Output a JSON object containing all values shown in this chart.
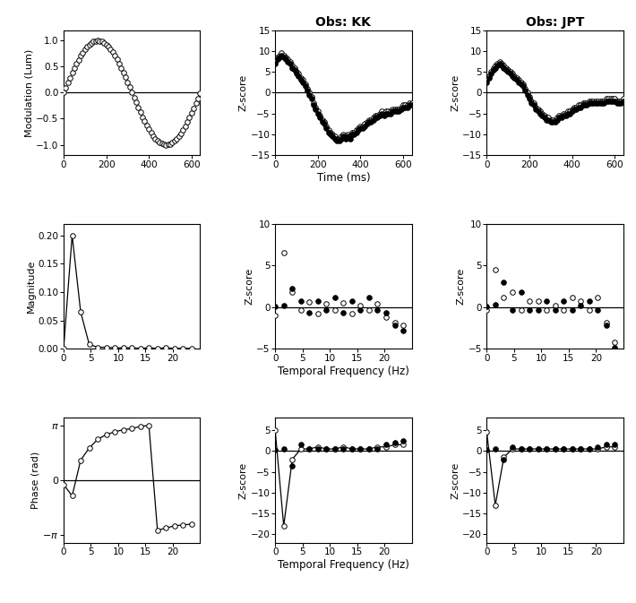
{
  "title_KK": "Obs: KK",
  "title_JPT": "Obs: JPT",
  "row1_ylabel": "Modulation (Lum)",
  "row2_ylabel": "Magnitude",
  "row3_ylabel": "Phase (rad)",
  "zscore_ylabel": "Z-score",
  "row1_xlabel": "Time (ms)",
  "row23_xlabel": "Temporal Frequency (Hz)",
  "background_color": "#ffffff",
  "marker_size": 4.0,
  "line_width": 0.9,
  "mew": 0.7,
  "period_ms": 641.0,
  "t_vals": [
    0,
    10,
    20,
    30,
    40,
    50,
    60,
    70,
    80,
    90,
    100,
    110,
    120,
    130,
    140,
    150,
    160,
    170,
    180,
    190,
    200,
    210,
    220,
    230,
    240,
    250,
    260,
    270,
    280,
    290,
    300,
    310,
    320,
    330,
    340,
    350,
    360,
    370,
    380,
    390,
    400,
    410,
    420,
    430,
    440,
    450,
    460,
    470,
    480,
    490,
    500,
    510,
    520,
    530,
    540,
    550,
    560,
    570,
    580,
    590,
    600,
    610,
    620,
    630,
    640
  ],
  "freqs": [
    0.0,
    1.5625,
    3.125,
    4.6875,
    6.25,
    7.8125,
    9.375,
    10.9375,
    12.5,
    14.0625,
    15.625,
    17.1875,
    18.75,
    20.3125,
    21.875,
    23.4375
  ],
  "mag_vals": [
    0.001,
    0.2,
    0.065,
    0.008,
    0.003,
    0.003,
    0.002,
    0.002,
    0.002,
    0.001,
    0.002,
    0.001,
    0.002,
    0.001,
    0.001,
    0.001
  ],
  "phase_vals": [
    -0.25,
    -0.9,
    1.15,
    1.85,
    2.35,
    2.62,
    2.78,
    2.9,
    2.96,
    3.1,
    3.14,
    -2.88,
    -2.75,
    -2.62,
    -2.57,
    -2.52
  ],
  "kk_r1_open": [
    7.5,
    8.5,
    9.0,
    9.5,
    9.0,
    8.5,
    8.0,
    7.5,
    6.5,
    6.0,
    5.0,
    4.5,
    3.5,
    3.0,
    2.0,
    1.0,
    0.0,
    -1.0,
    -2.5,
    -3.5,
    -4.5,
    -5.5,
    -6.5,
    -7.0,
    -8.0,
    -9.0,
    -9.5,
    -10.0,
    -10.5,
    -11.0,
    -11.0,
    -10.5,
    -10.0,
    -10.5,
    -10.0,
    -10.5,
    -9.5,
    -9.5,
    -9.0,
    -8.5,
    -8.0,
    -8.0,
    -7.5,
    -7.0,
    -6.5,
    -6.5,
    -6.0,
    -5.5,
    -5.5,
    -5.0,
    -4.5,
    -5.0,
    -4.5,
    -4.5,
    -4.5,
    -4.0,
    -4.0,
    -4.0,
    -4.0,
    -3.5,
    -3.0,
    -3.0,
    -3.0,
    -2.5,
    -2.5
  ],
  "kk_r1_closed": [
    7.0,
    8.0,
    8.5,
    9.0,
    8.5,
    8.0,
    7.5,
    7.0,
    6.0,
    5.5,
    4.5,
    4.0,
    3.0,
    2.5,
    1.5,
    0.5,
    -0.5,
    -1.5,
    -3.0,
    -4.0,
    -5.0,
    -6.0,
    -7.0,
    -7.5,
    -8.5,
    -9.5,
    -10.0,
    -10.5,
    -11.0,
    -11.5,
    -11.5,
    -11.0,
    -10.5,
    -11.0,
    -10.5,
    -11.0,
    -10.0,
    -10.0,
    -9.5,
    -9.0,
    -8.5,
    -8.5,
    -8.0,
    -7.5,
    -7.0,
    -7.0,
    -6.5,
    -6.0,
    -6.0,
    -5.5,
    -5.0,
    -5.5,
    -5.0,
    -5.0,
    -5.0,
    -4.5,
    -4.5,
    -4.5,
    -4.5,
    -4.0,
    -3.5,
    -3.5,
    -3.5,
    -3.0,
    -3.0
  ],
  "jpt_r1_open": [
    3.0,
    4.0,
    5.0,
    6.0,
    6.5,
    7.0,
    7.5,
    7.0,
    6.5,
    6.0,
    5.5,
    5.0,
    4.5,
    4.0,
    3.5,
    3.0,
    2.5,
    2.0,
    1.0,
    0.0,
    -1.0,
    -2.0,
    -2.5,
    -3.5,
    -4.0,
    -4.5,
    -5.0,
    -5.5,
    -6.0,
    -6.0,
    -6.5,
    -6.5,
    -6.5,
    -6.0,
    -5.5,
    -5.5,
    -5.0,
    -5.0,
    -4.5,
    -4.5,
    -4.0,
    -3.5,
    -3.5,
    -3.0,
    -3.0,
    -2.5,
    -2.5,
    -2.5,
    -2.0,
    -2.0,
    -2.0,
    -2.0,
    -2.0,
    -2.0,
    -2.0,
    -2.0,
    -1.5,
    -1.5,
    -1.5,
    -1.5,
    -1.5,
    -2.0,
    -2.0,
    -2.0,
    -1.5
  ],
  "jpt_r1_closed": [
    2.5,
    3.5,
    4.5,
    5.5,
    6.0,
    6.5,
    7.0,
    6.5,
    6.0,
    5.5,
    5.0,
    4.5,
    4.0,
    3.5,
    3.0,
    2.5,
    2.0,
    1.5,
    0.5,
    -0.5,
    -1.5,
    -2.5,
    -3.0,
    -4.0,
    -4.5,
    -5.0,
    -5.5,
    -6.0,
    -6.5,
    -6.5,
    -7.0,
    -7.0,
    -7.0,
    -6.5,
    -6.0,
    -6.0,
    -5.5,
    -5.5,
    -5.0,
    -5.0,
    -4.5,
    -4.0,
    -4.0,
    -3.5,
    -3.5,
    -3.0,
    -3.0,
    -3.0,
    -2.5,
    -2.5,
    -2.5,
    -2.5,
    -2.5,
    -2.5,
    -2.5,
    -2.5,
    -2.0,
    -2.0,
    -2.0,
    -2.0,
    -2.0,
    -2.5,
    -2.5,
    -2.5,
    -2.0
  ],
  "kk_mag_open": [
    -1.0,
    6.5,
    1.8,
    -0.3,
    0.6,
    -0.8,
    0.4,
    -0.3,
    0.5,
    -0.8,
    0.2,
    -0.3,
    0.4,
    -1.2,
    -1.8,
    -2.2
  ],
  "kk_mag_closed": [
    0.1,
    0.2,
    2.2,
    0.7,
    -0.7,
    0.7,
    -0.3,
    1.2,
    -0.7,
    0.7,
    -0.3,
    1.2,
    -0.3,
    -0.7,
    -2.2,
    -2.8
  ],
  "jpt_mag_open": [
    -0.3,
    4.5,
    1.2,
    1.8,
    -0.3,
    0.7,
    0.7,
    -0.3,
    0.2,
    -0.3,
    1.2,
    0.7,
    -0.3,
    1.2,
    -1.8,
    -4.2
  ],
  "jpt_mag_closed": [
    0.1,
    0.3,
    3.0,
    -0.3,
    1.8,
    -0.3,
    -0.3,
    0.7,
    -0.3,
    0.7,
    -0.3,
    0.2,
    0.7,
    -0.3,
    -2.2,
    -4.8
  ],
  "kk_phase_open": [
    5.0,
    -18.0,
    -2.0,
    0.5,
    0.5,
    1.0,
    0.5,
    0.5,
    1.0,
    0.5,
    0.5,
    0.5,
    1.0,
    1.0,
    1.5,
    1.5
  ],
  "kk_phase_closed": [
    0.3,
    0.5,
    -3.5,
    1.5,
    0.5,
    0.5,
    0.5,
    0.5,
    0.5,
    0.5,
    0.5,
    0.5,
    0.5,
    1.5,
    2.0,
    2.5
  ],
  "jpt_phase_open": [
    4.5,
    -13.0,
    -1.5,
    0.5,
    0.5,
    0.5,
    0.5,
    0.5,
    0.5,
    0.5,
    0.5,
    0.5,
    0.5,
    0.5,
    1.0,
    1.0
  ],
  "jpt_phase_closed": [
    0.3,
    0.5,
    -2.0,
    1.0,
    0.5,
    0.5,
    0.5,
    0.5,
    0.5,
    0.5,
    0.5,
    0.5,
    0.5,
    1.0,
    1.5,
    1.5
  ]
}
